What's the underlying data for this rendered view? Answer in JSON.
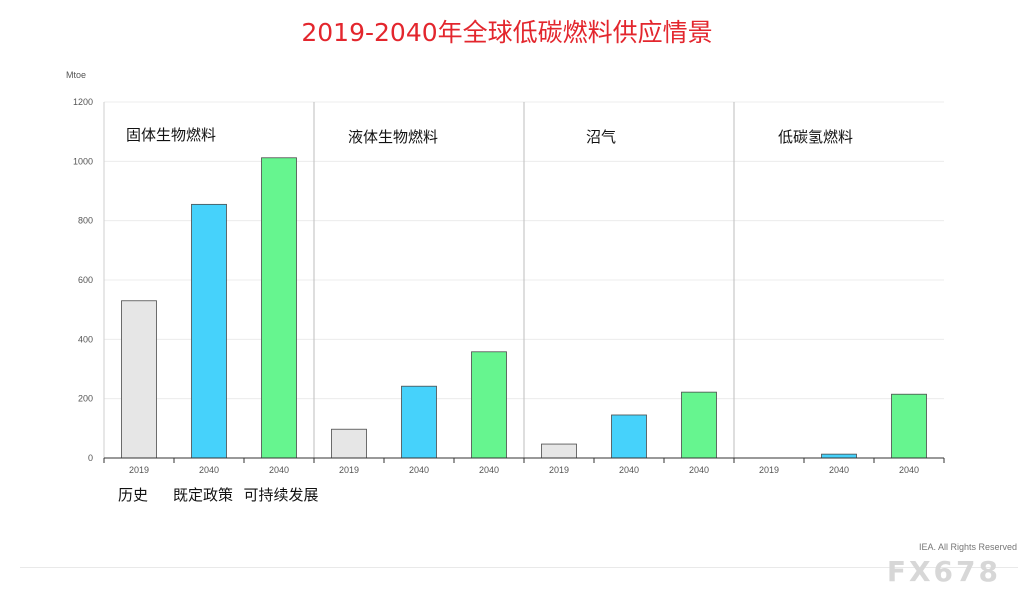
{
  "page": {
    "credit": "IEA. All Rights Reserved",
    "watermark": "FX678"
  },
  "chart_data": {
    "type": "bar",
    "title": "2019-2040年全球低碳燃料供应情景",
    "ylabel": "Mtoe",
    "xlabel": "",
    "ylim": [
      0,
      1200
    ],
    "yticks": [
      0,
      200,
      400,
      600,
      800,
      1000,
      1200
    ],
    "grid": true,
    "colors": {
      "历史": "#e6e6e6",
      "既定政策": "#46d2fb",
      "可持续发展": "#66f58f"
    },
    "legend_order": [
      "历史",
      "既定政策",
      "可持续发展"
    ],
    "panels": [
      {
        "name": "固体生物燃料",
        "bars": [
          {
            "year": "2019",
            "scenario": "历史",
            "value": 530
          },
          {
            "year": "2040",
            "scenario": "既定政策",
            "value": 855
          },
          {
            "year": "2040",
            "scenario": "可持续发展",
            "value": 1012
          }
        ]
      },
      {
        "name": "液体生物燃料",
        "bars": [
          {
            "year": "2019",
            "scenario": "历史",
            "value": 97
          },
          {
            "year": "2040",
            "scenario": "既定政策",
            "value": 242
          },
          {
            "year": "2040",
            "scenario": "可持续发展",
            "value": 358
          }
        ]
      },
      {
        "name": "沼气",
        "bars": [
          {
            "year": "2019",
            "scenario": "历史",
            "value": 47
          },
          {
            "year": "2040",
            "scenario": "既定政策",
            "value": 145
          },
          {
            "year": "2040",
            "scenario": "可持续发展",
            "value": 222
          }
        ]
      },
      {
        "name": "低碳氢燃料",
        "bars": [
          {
            "year": "2019",
            "scenario": "历史",
            "value": 0
          },
          {
            "year": "2040",
            "scenario": "既定政策",
            "value": 13
          },
          {
            "year": "2040",
            "scenario": "可持续发展",
            "value": 215
          }
        ]
      }
    ]
  }
}
